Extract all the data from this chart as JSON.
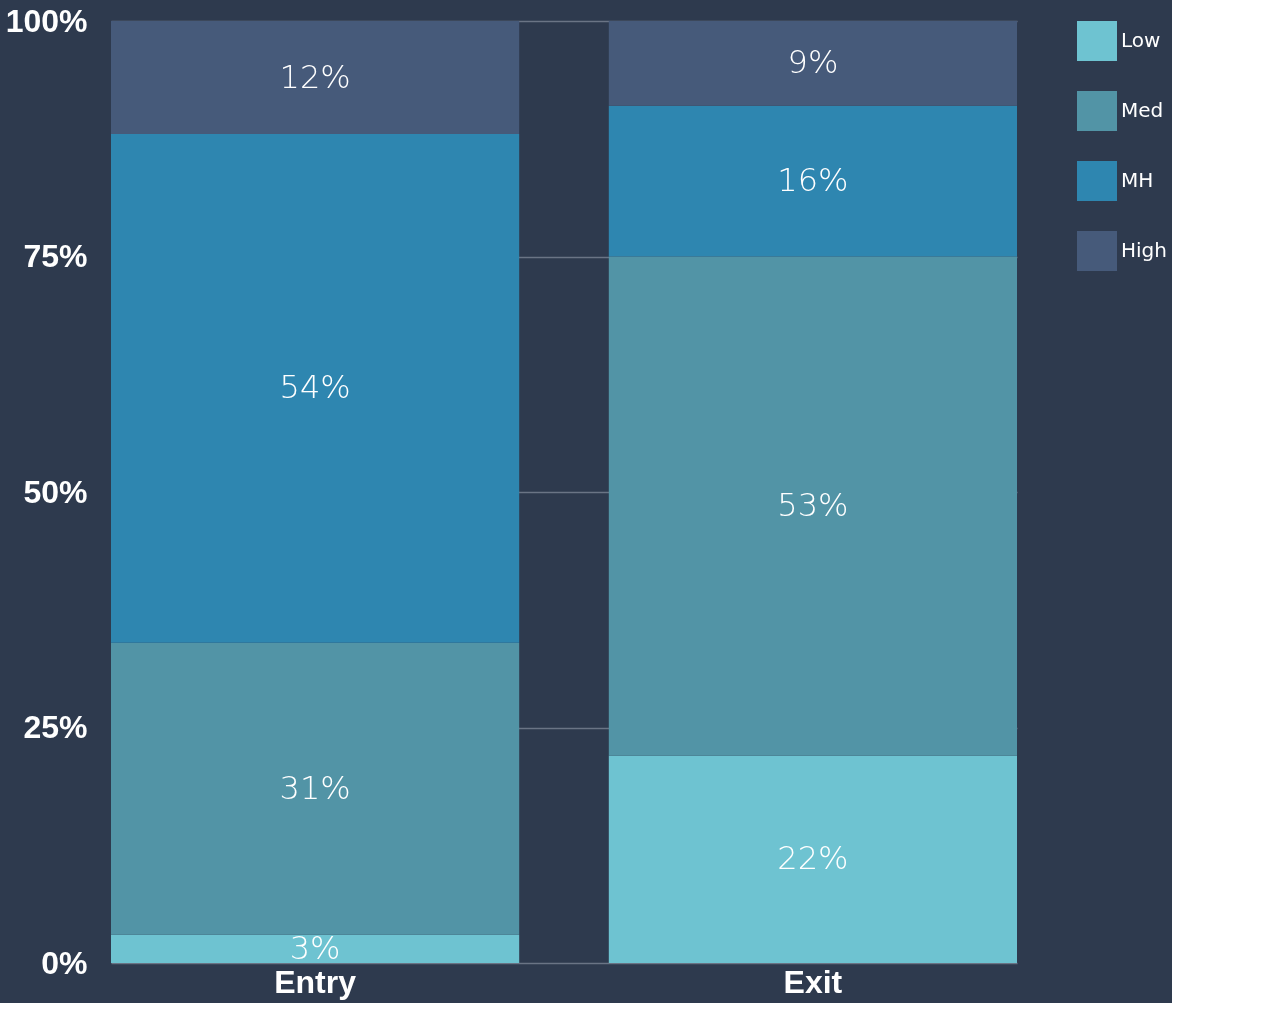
{
  "chart_data": {
    "type": "bar",
    "stacked": true,
    "categories": [
      "Entry",
      "Exit"
    ],
    "series": [
      {
        "name": "Low",
        "color": "#6ec3d1",
        "values": [
          3,
          22
        ],
        "value_labels": [
          "3%",
          "22%"
        ]
      },
      {
        "name": "Med",
        "color": "#5294a6",
        "values": [
          31,
          53
        ],
        "value_labels": [
          "31%",
          "53%"
        ]
      },
      {
        "name": "MH",
        "color": "#2e86b0",
        "values": [
          54,
          16
        ],
        "value_labels": [
          "54%",
          "16%"
        ]
      },
      {
        "name": "High",
        "color": "#465a7a",
        "values": [
          12,
          9
        ],
        "value_labels": [
          "12%",
          "9%"
        ]
      }
    ],
    "ylim": [
      0,
      100
    ],
    "yticks": [
      {
        "value": 0,
        "label": "0%"
      },
      {
        "value": 25,
        "label": "25%"
      },
      {
        "value": 50,
        "label": "50%"
      },
      {
        "value": 75,
        "label": "75%"
      },
      {
        "value": 100,
        "label": "100%"
      }
    ],
    "grid": "y",
    "legend": "right"
  }
}
